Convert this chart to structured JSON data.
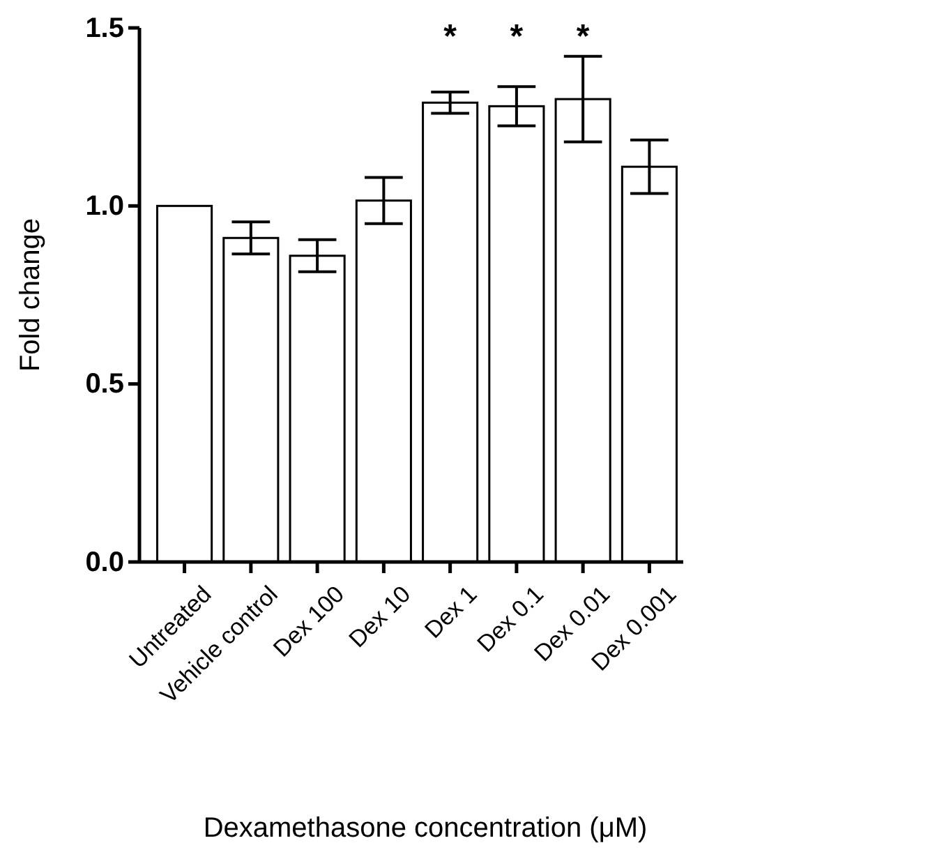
{
  "chart_data": {
    "type": "bar",
    "xlabel": "Dexamethasone concentration (μM)",
    "ylabel": "Fold change",
    "categories": [
      "Untreated",
      "Vehicle control",
      "Dex 100",
      "Dex 10",
      "Dex 1",
      "Dex 0.1",
      "Dex 0.01",
      "Dex 0.001"
    ],
    "values": [
      1.0,
      0.91,
      0.86,
      1.015,
      1.29,
      1.28,
      1.3,
      1.11
    ],
    "errors": [
      null,
      0.045,
      0.045,
      0.065,
      0.03,
      0.055,
      0.12,
      0.075
    ],
    "color": "#ffffff",
    "ylim": [
      0,
      1.5
    ],
    "yticks": [
      {
        "value": 0,
        "label": "0.0"
      },
      {
        "value": 0.5,
        "label": "0.5"
      },
      {
        "value": 1,
        "label": "1.0"
      },
      {
        "value": 1.5,
        "label": "1.5"
      }
    ],
    "value_labels": [
      null,
      null,
      null,
      null,
      "*",
      "*",
      "*",
      null
    ],
    "grid": false
  }
}
